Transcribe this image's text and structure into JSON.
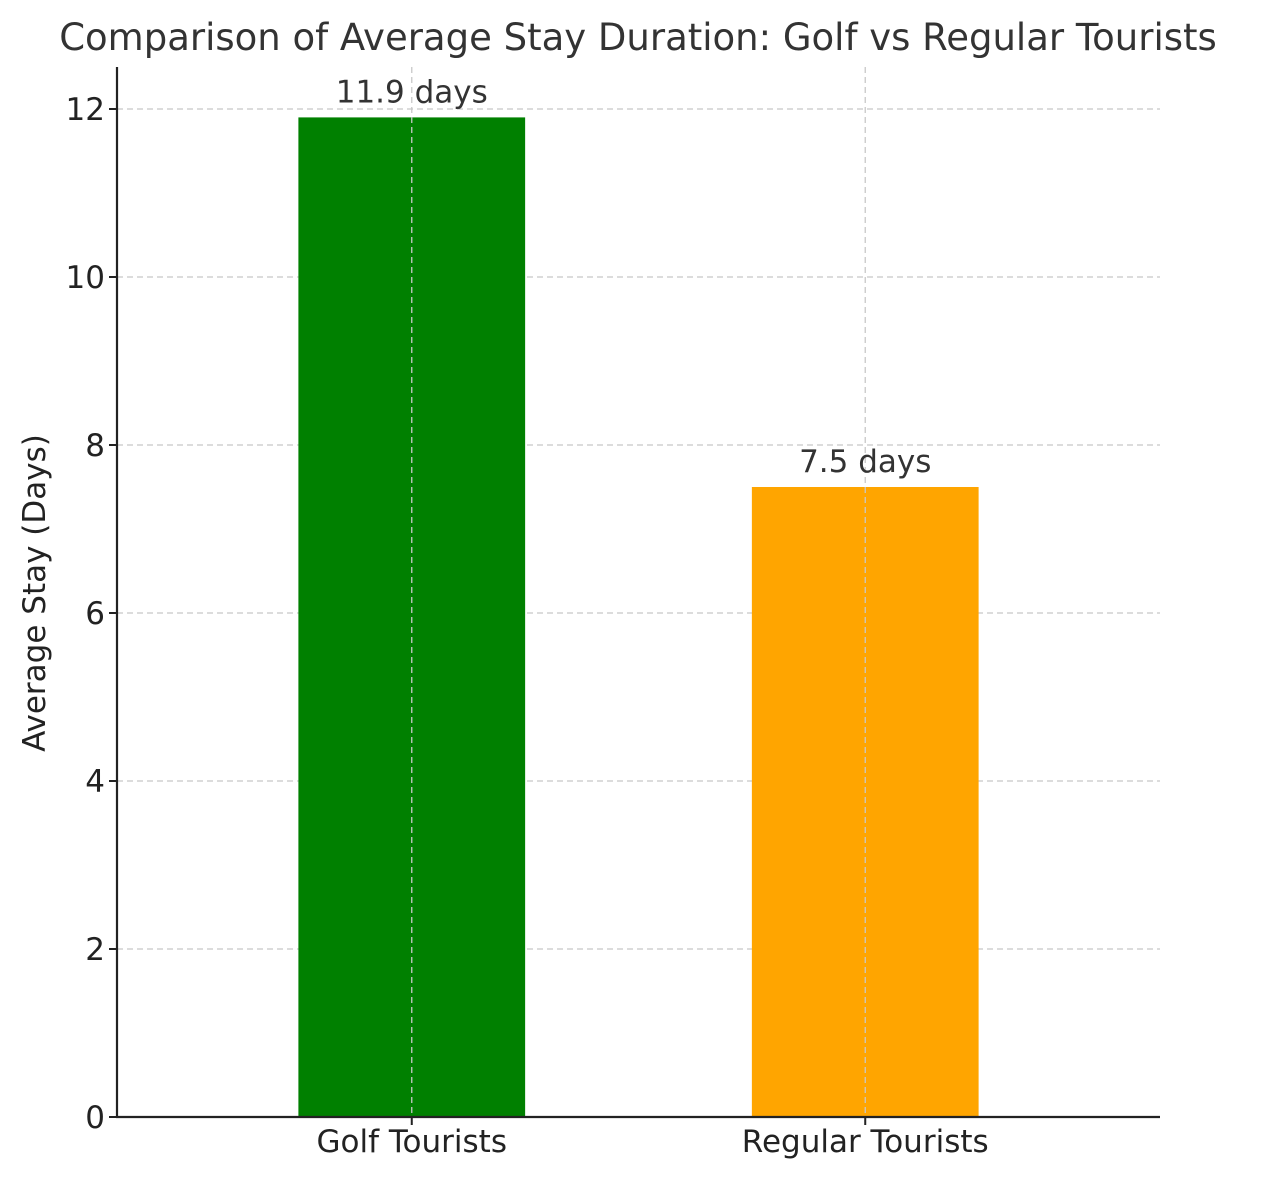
{
  "chart_data": {
    "type": "bar",
    "title": "Comparison of Average Stay Duration: Golf vs Regular Tourists",
    "xlabel": "",
    "ylabel": "Average Stay (Days)",
    "categories": [
      "Golf Tourists",
      "Regular Tourists"
    ],
    "values": [
      11.9,
      7.5
    ],
    "data_labels": [
      "11.9 days",
      "7.5 days"
    ],
    "colors": [
      "#008000",
      "#FFA500"
    ],
    "ylim": [
      0,
      12.5
    ],
    "yticks": [
      0,
      2,
      4,
      6,
      8,
      10,
      12
    ],
    "grid": true
  }
}
